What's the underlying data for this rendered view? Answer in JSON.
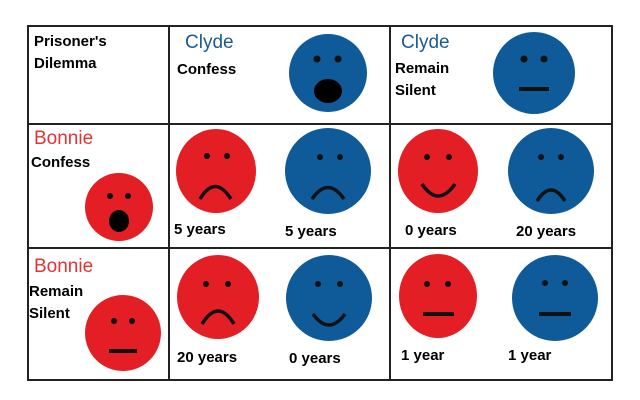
{
  "title": {
    "line1": "Prisoner's",
    "line2": "Dilemma"
  },
  "colors": {
    "red": "#e31e24",
    "blue": "#0f5a98",
    "name_red": "#e53333",
    "name_blue": "#1a5b94",
    "feature": "#111111"
  },
  "columns": [
    {
      "name": "Clyde",
      "action_line1": "Confess",
      "action_line2": "",
      "face": "shocked"
    },
    {
      "name": "Clyde",
      "action_line1": "Remain",
      "action_line2": "Silent",
      "face": "neutral"
    }
  ],
  "rows": [
    {
      "name": "Bonnie",
      "action_line1": "Confess",
      "action_line2": "",
      "face": "shocked"
    },
    {
      "name": "Bonnie",
      "action_line1": "Remain",
      "action_line2": "Silent",
      "face": "neutral"
    }
  ],
  "outcomes": [
    [
      {
        "bonnie": {
          "face": "sad",
          "sentence": "5 years"
        },
        "clyde": {
          "face": "sad",
          "sentence": "5 years"
        }
      },
      {
        "bonnie": {
          "face": "happy",
          "sentence": "0 years"
        },
        "clyde": {
          "face": "sad",
          "sentence": "20 years"
        }
      }
    ],
    [
      {
        "bonnie": {
          "face": "sad",
          "sentence": "20 years"
        },
        "clyde": {
          "face": "happy",
          "sentence": "0 years"
        }
      },
      {
        "bonnie": {
          "face": "neutral",
          "sentence": "1 year"
        },
        "clyde": {
          "face": "neutral",
          "sentence": "1 year"
        }
      }
    ]
  ]
}
